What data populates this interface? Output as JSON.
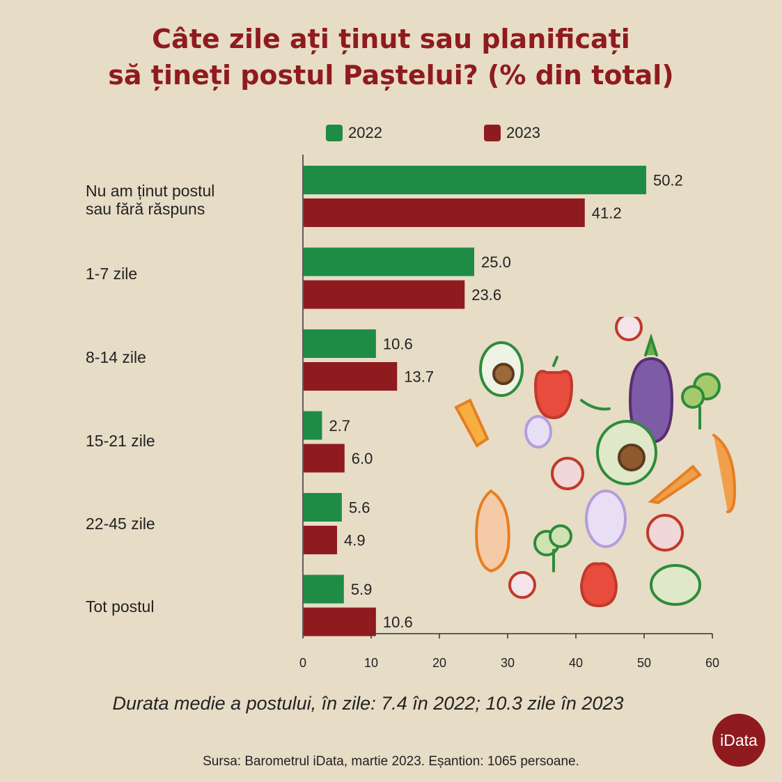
{
  "title_line1": "Câte zile ați ținut sau planificați",
  "title_line2": "să țineți postul Paștelui? (% din total)",
  "legend": [
    {
      "label": "2022",
      "color": "#1e8c45"
    },
    {
      "label": "2023",
      "color": "#8f1b1f"
    }
  ],
  "chart_data": {
    "type": "bar",
    "orientation": "horizontal",
    "categories": [
      "Nu am ținut postul sau fără răspuns",
      "1-7 zile",
      "8-14 zile",
      "15-21 zile",
      "22-45 zile",
      "Tot postul"
    ],
    "series": [
      {
        "name": "2022",
        "color": "#1e8c45",
        "values": [
          50.2,
          25.0,
          10.6,
          2.7,
          5.6,
          5.9
        ]
      },
      {
        "name": "2023",
        "color": "#8f1b1f",
        "values": [
          41.2,
          23.6,
          13.7,
          6.0,
          4.9,
          10.6
        ]
      }
    ],
    "xlim": [
      0,
      60
    ],
    "xticks": [
      0,
      10,
      20,
      30,
      40,
      50,
      60
    ],
    "grid": false,
    "legend_position": "top"
  },
  "cat_labels": {
    "c0_line1": "Nu am ținut postul",
    "c0_line2": "sau fără răspuns",
    "c1": "1-7 zile",
    "c2": "8-14 zile",
    "c3": "15-21 zile",
    "c4": "22-45 zile",
    "c5": "Tot postul"
  },
  "subtitle": "Durata medie a postului, în zile: 7.4 în 2022; 10.3 zile în 2023",
  "source": "Sursa: Barometrul iData, martie 2023. Eșantion: 1065 persoane.",
  "logo_text": "iData"
}
